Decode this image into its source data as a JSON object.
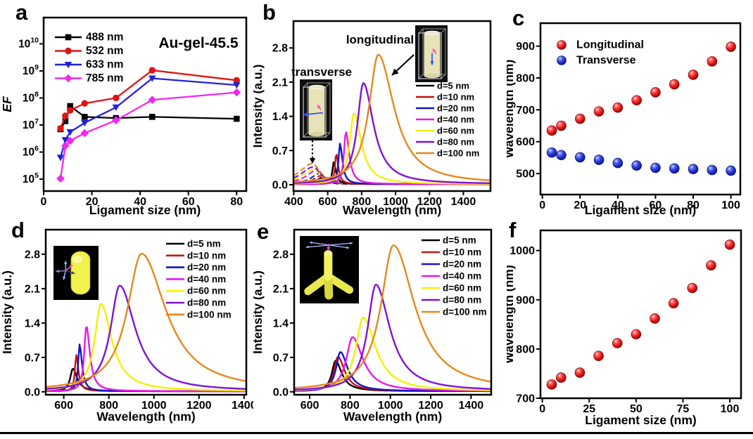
{
  "figure": {
    "background": "#ffffff",
    "divider_color": "#000000",
    "letters": [
      "a",
      "b",
      "c",
      "d",
      "e",
      "f"
    ]
  },
  "chart_data": [
    {
      "id": "a",
      "letter": "a",
      "type": "line",
      "title": "Au-gel-45.5",
      "xlabel": "Ligament size (nm)",
      "ylabel": "EF",
      "ylabel_italic": true,
      "xlim": [
        0,
        84
      ],
      "xticks": [
        0,
        20,
        40,
        60,
        80
      ],
      "yscale": "log",
      "ylim": [
        4.56,
        10.97
      ],
      "ytick_exponents": [
        5,
        6,
        7,
        8,
        9,
        10
      ],
      "series": [
        {
          "name": "488 nm",
          "color": "#000000",
          "marker": "square",
          "x": [
            7,
            9,
            11,
            17,
            30,
            45,
            80
          ],
          "y": [
            7000000.0,
            14000000.0,
            50000000.0,
            20000000.0,
            18000000.0,
            20000000.0,
            17000000.0
          ]
        },
        {
          "name": "532 nm",
          "color": "#e01414",
          "marker": "circle",
          "x": [
            7,
            9,
            11,
            17,
            30,
            45,
            80
          ],
          "y": [
            7500000.0,
            22000000.0,
            35000000.0,
            63000000.0,
            100000000.0,
            1050000000.0,
            450000000.0
          ]
        },
        {
          "name": "633 nm",
          "color": "#2222d8",
          "marker": "triangle-down",
          "x": [
            7,
            9,
            11,
            17,
            30,
            45,
            80
          ],
          "y": [
            630000.0,
            2800000.0,
            5500000.0,
            12000000.0,
            45000000.0,
            530000000.0,
            300000000.0
          ]
        },
        {
          "name": "785 nm",
          "color": "#f028f0",
          "marker": "diamond",
          "x": [
            7,
            9,
            11,
            17,
            30,
            45,
            80
          ],
          "y": [
            105000.0,
            1700000.0,
            2600000.0,
            5000000.0,
            15000000.0,
            85000000.0,
            160000000.0
          ]
        }
      ]
    },
    {
      "id": "b",
      "letter": "b",
      "type": "spectra",
      "xlabel": "Wavelength (nm)",
      "ylabel": "Intensity (a.u.)",
      "xlim": [
        398,
        1560
      ],
      "xticks": [
        400,
        600,
        800,
        1000,
        1200,
        1400
      ],
      "ylim": [
        -0.13,
        3.35
      ],
      "yticks": [
        {
          "v": 0,
          "label": "0.0"
        },
        {
          "v": 0.7,
          "label": "0.7"
        },
        {
          "v": 1.4,
          "label": "1.4"
        },
        {
          "v": 2.1,
          "label": "2.1"
        },
        {
          "v": 2.8,
          "label": "2.8"
        }
      ],
      "annotations": {
        "longitudinal": "longitudinal",
        "transverse": "transverse"
      },
      "insets": [
        "transverse-nanorod-cell",
        "longitudinal-nanorod-cell"
      ],
      "series": [
        {
          "name": "d=5 nm",
          "color": "#000000",
          "peak": 635,
          "height": 0.45,
          "width": 11
        },
        {
          "name": "d=10 nm",
          "color": "#c41414",
          "peak": 650,
          "height": 0.63,
          "width": 10
        },
        {
          "name": "d=20 nm",
          "color": "#1414c4",
          "peak": 672,
          "height": 0.83,
          "width": 12
        },
        {
          "name": "d=40 nm",
          "color": "#e619e6",
          "peak": 707,
          "height": 1.07,
          "width": 16
        },
        {
          "name": "d=60 nm",
          "color": "#f2f200",
          "peak": 755,
          "height": 1.45,
          "width": 36
        },
        {
          "name": "d=80 nm",
          "color": "#7d14d6",
          "peak": 810,
          "height": 2.07,
          "width": 50
        },
        {
          "name": "d=100 nm",
          "color": "#e6881c",
          "peak": 898,
          "height": 2.65,
          "width": 78
        }
      ],
      "transverse_peaks": [
        {
          "peak": 566,
          "height": 0.13,
          "width": 30
        },
        {
          "peak": 558,
          "height": 0.17,
          "width": 34
        },
        {
          "peak": 551,
          "height": 0.22,
          "width": 38
        },
        {
          "peak": 533,
          "height": 0.28,
          "width": 48
        },
        {
          "peak": 518,
          "height": 0.3,
          "width": 54
        },
        {
          "peak": 514,
          "height": 0.35,
          "width": 58
        },
        {
          "peak": 509,
          "height": 0.42,
          "width": 62
        }
      ]
    },
    {
      "id": "c",
      "letter": "c",
      "type": "scatter",
      "xlabel": "Ligament size (nm)",
      "ylabel": "Wavelength (nm)",
      "xlim": [
        -1,
        105
      ],
      "xticks": [
        0,
        20,
        40,
        60,
        80,
        100
      ],
      "ylim": [
        434,
        972
      ],
      "yticks": [
        {
          "v": 500,
          "label": "500"
        },
        {
          "v": 600,
          "label": "600"
        },
        {
          "v": 700,
          "label": "700"
        },
        {
          "v": 800,
          "label": "800"
        },
        {
          "v": 900,
          "label": "900"
        }
      ],
      "series": [
        {
          "name": "Longitudinal",
          "sphere": "red",
          "x": [
            5,
            10,
            20,
            30,
            40,
            50,
            60,
            70,
            80,
            90,
            100
          ],
          "y": [
            635,
            650,
            672,
            695,
            707,
            730,
            755,
            780,
            810,
            852,
            898
          ]
        },
        {
          "name": "Transverse",
          "sphere": "blue",
          "x": [
            5,
            10,
            20,
            30,
            40,
            50,
            60,
            70,
            80,
            90,
            100
          ],
          "y": [
            566,
            558,
            551,
            543,
            533,
            525,
            518,
            516,
            514,
            511,
            509
          ]
        }
      ]
    },
    {
      "id": "d",
      "letter": "d",
      "type": "spectra",
      "xlabel": "Wavelength (nm)",
      "ylabel": "Intensity (a.u.)",
      "xlim": [
        520,
        1410
      ],
      "xticks": [
        600,
        800,
        1000,
        1200,
        1400
      ],
      "ylim": [
        -0.06,
        3.3
      ],
      "yticks": [
        {
          "v": 0,
          "label": "0.0"
        },
        {
          "v": 0.7,
          "label": "0.7"
        },
        {
          "v": 1.4,
          "label": "1.4"
        },
        {
          "v": 2.1,
          "label": "2.1"
        },
        {
          "v": 2.8,
          "label": "2.8"
        }
      ],
      "insets": [
        "nanorod-capsule"
      ],
      "series": [
        {
          "name": "d=5 nm",
          "color": "#000000",
          "peak": 640,
          "height": 0.46,
          "width": 16
        },
        {
          "name": "d=10 nm",
          "color": "#c41414",
          "peak": 655,
          "height": 0.74,
          "width": 8
        },
        {
          "name": "d=20 nm",
          "color": "#1414c4",
          "peak": 670,
          "height": 0.95,
          "width": 9
        },
        {
          "name": "d=40 nm",
          "color": "#e619e6",
          "peak": 700,
          "height": 1.33,
          "width": 13
        },
        {
          "name": "d=60 nm",
          "color": "#f2f200",
          "peak": 765,
          "height": 1.78,
          "width": 40
        },
        {
          "name": "d=80 nm",
          "color": "#7d14d6",
          "peak": 848,
          "height": 2.15,
          "width": 58
        },
        {
          "name": "d=100 nm",
          "color": "#e6881c",
          "peak": 945,
          "height": 2.8,
          "width": 90
        }
      ]
    },
    {
      "id": "e",
      "letter": "e",
      "type": "spectra",
      "xlabel": "Wavelength (nm)",
      "ylabel": "Intensity (a.u.)",
      "xlim": [
        523,
        1500
      ],
      "xticks": [
        600,
        800,
        1000,
        1200,
        1400
      ],
      "ylim": [
        -0.06,
        3.3
      ],
      "yticks": [
        {
          "v": 0,
          "label": "0.0"
        },
        {
          "v": 0.7,
          "label": "0.7"
        },
        {
          "v": 1.4,
          "label": "1.4"
        },
        {
          "v": 2.1,
          "label": "2.1"
        },
        {
          "v": 2.8,
          "label": "2.8"
        }
      ],
      "insets": [
        "tetrapod"
      ],
      "series": [
        {
          "name": "d=5 nm",
          "color": "#000000",
          "peak": 728,
          "height": 0.62,
          "width": 26
        },
        {
          "name": "d=10 nm",
          "color": "#c41414",
          "peak": 740,
          "height": 0.7,
          "width": 28
        },
        {
          "name": "d=20 nm",
          "color": "#1414c4",
          "peak": 752,
          "height": 0.8,
          "width": 30
        },
        {
          "name": "d=40 nm",
          "color": "#e619e6",
          "peak": 812,
          "height": 1.1,
          "width": 44
        },
        {
          "name": "d=60 nm",
          "color": "#f2f200",
          "peak": 865,
          "height": 1.5,
          "width": 52
        },
        {
          "name": "d=80 nm",
          "color": "#7d14d6",
          "peak": 928,
          "height": 2.17,
          "width": 58
        },
        {
          "name": "d=100 nm",
          "color": "#e6881c",
          "peak": 1015,
          "height": 2.97,
          "width": 88
        }
      ]
    },
    {
      "id": "f",
      "letter": "f",
      "type": "scatter",
      "xlabel": "Ligament size (nm)",
      "ylabel": "Wavelength (nm)",
      "xlim": [
        -1,
        106
      ],
      "xticks": [
        0,
        25,
        50,
        75,
        100
      ],
      "ylim": [
        700,
        1041
      ],
      "yticks": [
        {
          "v": 700,
          "label": "700"
        },
        {
          "v": 800,
          "label": "800"
        },
        {
          "v": 900,
          "label": "900"
        },
        {
          "v": 1000,
          "label": "1000"
        }
      ],
      "series": [
        {
          "name": "Longitudinal",
          "sphere": "red",
          "x": [
            5,
            10,
            20,
            30,
            40,
            50,
            60,
            70,
            80,
            90,
            100
          ],
          "y": [
            728,
            742,
            752,
            786,
            812,
            830,
            862,
            893,
            924,
            970,
            1012
          ]
        }
      ]
    }
  ]
}
